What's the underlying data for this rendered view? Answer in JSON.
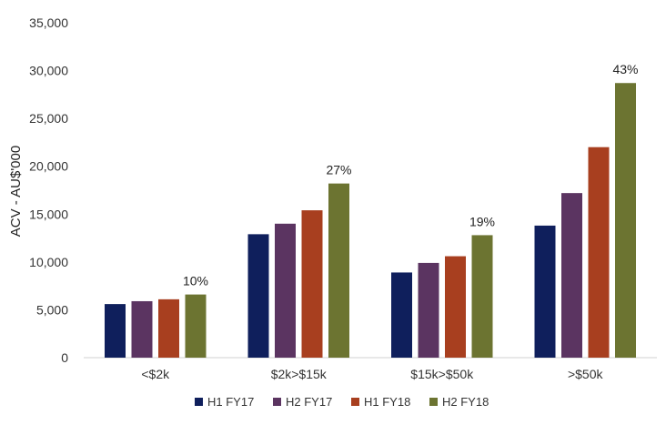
{
  "chart_data": {
    "type": "bar",
    "title": "",
    "xlabel": "",
    "ylabel": "ACV - AU$'000",
    "ylim": [
      0,
      35000
    ],
    "yticks": [
      0,
      5000,
      10000,
      15000,
      20000,
      25000,
      30000,
      35000
    ],
    "ytick_labels": [
      "0",
      "5,000",
      "10,000",
      "15,000",
      "20,000",
      "25,000",
      "30,000",
      "35,000"
    ],
    "categories": [
      "<$2k",
      "$2k>$15k",
      "$15k>$50k",
      ">$50k"
    ],
    "series": [
      {
        "name": "H1 FY17",
        "color": "#0f1f5c",
        "values": [
          5600,
          12900,
          8900,
          13800
        ]
      },
      {
        "name": "H2 FY17",
        "color": "#5b3461",
        "values": [
          5900,
          14000,
          9900,
          17200
        ]
      },
      {
        "name": "H1 FY18",
        "color": "#a83f1f",
        "values": [
          6100,
          15400,
          10600,
          22000
        ]
      },
      {
        "name": "H2 FY18",
        "color": "#6c7431",
        "values": [
          6600,
          18200,
          12800,
          28700
        ]
      }
    ],
    "data_labels": [
      "10%",
      "27%",
      "19%",
      "43%"
    ],
    "grid": false,
    "legend_position": "bottom"
  }
}
